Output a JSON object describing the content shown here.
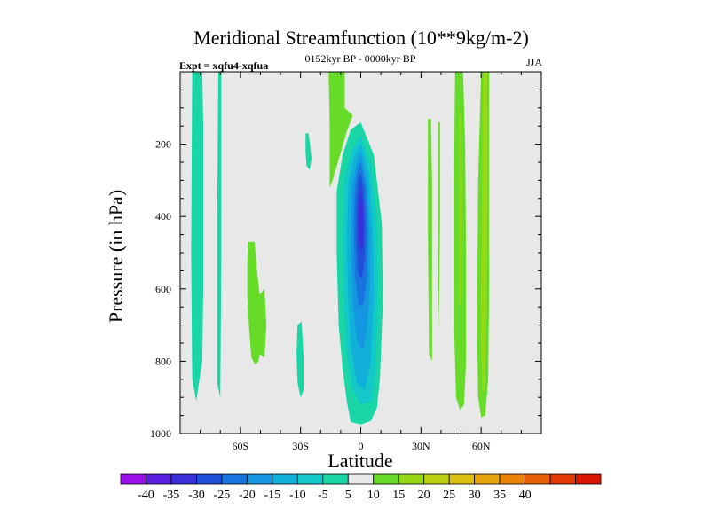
{
  "chart_data": {
    "type": "contour",
    "title": "Meridional Streamfunction (10**9kg/m-2)",
    "left_string": "Expt = xqfu4-xqfua",
    "center_string": "0152kyr BP - 0000kyr BP",
    "right_string": "JJA",
    "xlabel": "Latitude",
    "ylabel": "Pressure (in hPa)",
    "xlim": [
      -90,
      90
    ],
    "ylim": [
      1000,
      0
    ],
    "x_ticks": [
      {
        "value": -60,
        "label": "60S"
      },
      {
        "value": -30,
        "label": "30S"
      },
      {
        "value": 0,
        "label": "0"
      },
      {
        "value": 30,
        "label": "30N"
      },
      {
        "value": 60,
        "label": "60N"
      }
    ],
    "y_ticks": [
      {
        "value": 200,
        "label": "200"
      },
      {
        "value": 400,
        "label": "400"
      },
      {
        "value": 600,
        "label": "600"
      },
      {
        "value": 800,
        "label": "800"
      },
      {
        "value": 1000,
        "label": "1000"
      }
    ],
    "background_color": "#e8e8e8",
    "colorbar": {
      "levels": [
        -40,
        -35,
        -30,
        -25,
        -20,
        -15,
        -10,
        -5,
        5,
        10,
        15,
        20,
        25,
        30,
        35,
        40
      ],
      "labels": [
        "-40",
        "-35",
        "-30",
        "-25",
        "-20",
        "-15",
        "-10",
        "-5",
        "5",
        "10",
        "15",
        "20",
        "25",
        "30",
        "35",
        "40"
      ],
      "colors": [
        "#9b10e8",
        "#5a1ee0",
        "#3a30d8",
        "#2050d8",
        "#1a74e0",
        "#1496e0",
        "#10b0d8",
        "#12c8c8",
        "#19d6a4",
        "#e8e8e8",
        "#66dc28",
        "#96d814",
        "#bcd012",
        "#dcc010",
        "#e8a40c",
        "#ea8408",
        "#e86006",
        "#e43804",
        "#dc1602"
      ]
    },
    "regions": [
      {
        "name": "neg-sh-column-a",
        "fill": "#19d6a4",
        "points": [
          [
            -84,
            0
          ],
          [
            -79,
            0
          ],
          [
            -78.5,
            150
          ],
          [
            -78.5,
            600
          ],
          [
            -79,
            800
          ],
          [
            -82,
            910
          ],
          [
            -84,
            850
          ],
          [
            -84.5,
            500
          ]
        ]
      },
      {
        "name": "neg-sh-column-b",
        "fill": "#19d6a4",
        "points": [
          [
            -71,
            0
          ],
          [
            -69.5,
            0
          ],
          [
            -69.5,
            500
          ],
          [
            -70,
            900
          ],
          [
            -71.5,
            860
          ],
          [
            -71.5,
            400
          ]
        ]
      },
      {
        "name": "pos-sh-lobe",
        "fill": "#66dc28",
        "points": [
          [
            -56,
            470
          ],
          [
            -53,
            470
          ],
          [
            -51.5,
            560
          ],
          [
            -49.5,
            660
          ],
          [
            -49.5,
            760
          ],
          [
            -51,
            800
          ],
          [
            -52.5,
            810
          ],
          [
            -54.5,
            790
          ],
          [
            -55.5,
            720
          ],
          [
            -56.5,
            620
          ],
          [
            -56.5,
            520
          ]
        ]
      },
      {
        "name": "pos-sh-small",
        "fill": "#66dc28",
        "points": [
          [
            -51,
            620
          ],
          [
            -48,
            600
          ],
          [
            -47,
            700
          ],
          [
            -48,
            790
          ],
          [
            -50.5,
            780
          ]
        ]
      },
      {
        "name": "neg-sh-lobe-800",
        "fill": "#19d6a4",
        "points": [
          [
            -31.5,
            700
          ],
          [
            -29.5,
            690
          ],
          [
            -28.5,
            790
          ],
          [
            -28.5,
            880
          ],
          [
            -30,
            900
          ],
          [
            -31.5,
            860
          ],
          [
            -32,
            780
          ]
        ]
      },
      {
        "name": "neg-sh-lobe-200",
        "fill": "#19d6a4",
        "points": [
          [
            -27.5,
            170
          ],
          [
            -26,
            170
          ],
          [
            -24.5,
            240
          ],
          [
            -25.5,
            270
          ],
          [
            -27,
            260
          ],
          [
            -27.5,
            220
          ]
        ]
      },
      {
        "name": "pos-trop-column",
        "fill": "#66dc28",
        "points": [
          [
            -16,
            0
          ],
          [
            -8,
            0
          ],
          [
            -8,
            100
          ],
          [
            -4,
            120
          ],
          [
            -7,
            165
          ],
          [
            -14,
            300
          ],
          [
            -15.5,
            320
          ],
          [
            -15.5,
            150
          ]
        ]
      },
      {
        "name": "neg-main-cell",
        "fill": "#19d6a4",
        "points": [
          [
            0,
            140
          ],
          [
            6.5,
            230
          ],
          [
            10.5,
            420
          ],
          [
            11,
            640
          ],
          [
            9.5,
            850
          ],
          [
            8,
            930
          ],
          [
            5,
            965
          ],
          [
            0,
            975
          ],
          [
            -5,
            968
          ],
          [
            -7,
            910
          ],
          [
            -9,
            820
          ],
          [
            -11,
            700
          ],
          [
            -12,
            500
          ],
          [
            -12,
            330
          ],
          [
            -9,
            230
          ],
          [
            -5,
            160
          ]
        ]
      },
      {
        "name": "neg-main-10",
        "fill": "#12c8c8",
        "points": [
          [
            0,
            175
          ],
          [
            5,
            260
          ],
          [
            8,
            420
          ],
          [
            8.5,
            620
          ],
          [
            7.5,
            820
          ],
          [
            5.5,
            910
          ],
          [
            0,
            920
          ],
          [
            -4,
            880
          ],
          [
            -7,
            780
          ],
          [
            -8.5,
            620
          ],
          [
            -9,
            450
          ],
          [
            -8,
            300
          ],
          [
            -5,
            220
          ]
        ]
      },
      {
        "name": "neg-main-15",
        "fill": "#10b0d8",
        "points": [
          [
            0,
            200
          ],
          [
            4,
            280
          ],
          [
            6,
            440
          ],
          [
            6.5,
            620
          ],
          [
            5,
            800
          ],
          [
            2,
            880
          ],
          [
            -2,
            860
          ],
          [
            -5,
            760
          ],
          [
            -6.5,
            600
          ],
          [
            -7,
            440
          ],
          [
            -6,
            300
          ],
          [
            -3,
            230
          ]
        ]
      },
      {
        "name": "neg-main-20",
        "fill": "#1496e0",
        "points": [
          [
            0,
            225
          ],
          [
            3,
            300
          ],
          [
            4.5,
            440
          ],
          [
            4.5,
            600
          ],
          [
            3,
            720
          ],
          [
            1,
            770
          ],
          [
            -2,
            740
          ],
          [
            -4,
            640
          ],
          [
            -5,
            480
          ],
          [
            -4.5,
            320
          ],
          [
            -2,
            250
          ]
        ]
      },
      {
        "name": "neg-main-25",
        "fill": "#1a74e0",
        "points": [
          [
            0,
            250
          ],
          [
            2.5,
            320
          ],
          [
            3.5,
            430
          ],
          [
            3.2,
            560
          ],
          [
            1.5,
            640
          ],
          [
            -1,
            650
          ],
          [
            -3,
            560
          ],
          [
            -3.5,
            420
          ],
          [
            -3,
            320
          ],
          [
            -1.5,
            270
          ]
        ]
      },
      {
        "name": "neg-main-30",
        "fill": "#2050d8",
        "points": [
          [
            0,
            280
          ],
          [
            1.5,
            330
          ],
          [
            2.3,
            420
          ],
          [
            2,
            520
          ],
          [
            0.5,
            570
          ],
          [
            -1.3,
            560
          ],
          [
            -2.3,
            470
          ],
          [
            -2.3,
            370
          ],
          [
            -1.3,
            300
          ]
        ]
      },
      {
        "name": "neg-main-35",
        "fill": "#3a30d8",
        "points": [
          [
            0,
            320
          ],
          [
            1,
            360
          ],
          [
            1.4,
            420
          ],
          [
            1,
            480
          ],
          [
            0,
            500
          ],
          [
            -1,
            470
          ],
          [
            -1.3,
            400
          ],
          [
            -0.8,
            350
          ]
        ]
      },
      {
        "name": "pos-nh-sliver-a",
        "fill": "#66dc28",
        "points": [
          [
            33.5,
            130
          ],
          [
            35,
            130
          ],
          [
            35.5,
            300
          ],
          [
            35.5,
            800
          ],
          [
            34,
            780
          ],
          [
            33.5,
            450
          ]
        ]
      },
      {
        "name": "pos-nh-sliver-b",
        "fill": "#66dc28",
        "points": [
          [
            38.5,
            140
          ],
          [
            39.5,
            140
          ],
          [
            39.5,
            400
          ],
          [
            39,
            720
          ],
          [
            38.5,
            500
          ]
        ]
      },
      {
        "name": "pos-nh-column-a",
        "fill": "#66dc28",
        "points": [
          [
            47,
            0
          ],
          [
            51,
            0
          ],
          [
            52,
            200
          ],
          [
            52.5,
            500
          ],
          [
            52.5,
            800
          ],
          [
            51.5,
            920
          ],
          [
            49.5,
            935
          ],
          [
            47.5,
            900
          ],
          [
            46.5,
            700
          ],
          [
            46.5,
            300
          ]
        ]
      },
      {
        "name": "pos-nh-column-b",
        "fill": "#66dc28",
        "points": [
          [
            60,
            0
          ],
          [
            64,
            0
          ],
          [
            64,
            300
          ],
          [
            64,
            600
          ],
          [
            63.5,
            850
          ],
          [
            62,
            950
          ],
          [
            60,
            955
          ],
          [
            58.5,
            900
          ],
          [
            58,
            700
          ],
          [
            58.5,
            300
          ]
        ]
      },
      {
        "name": "pos-nh-column-b-10",
        "fill": "#96d814",
        "points": [
          [
            61,
            0
          ],
          [
            63,
            0
          ],
          [
            63,
            400
          ],
          [
            62.5,
            700
          ],
          [
            61.8,
            880
          ],
          [
            60.5,
            890
          ],
          [
            59.8,
            700
          ],
          [
            60.2,
            400
          ]
        ]
      },
      {
        "name": "pos-nh-column-a-10",
        "fill": "#96d814",
        "points": [
          [
            49,
            120
          ],
          [
            50.2,
            120
          ],
          [
            50.5,
            400
          ],
          [
            50.2,
            650
          ],
          [
            49.2,
            640
          ],
          [
            49,
            400
          ]
        ]
      }
    ]
  }
}
